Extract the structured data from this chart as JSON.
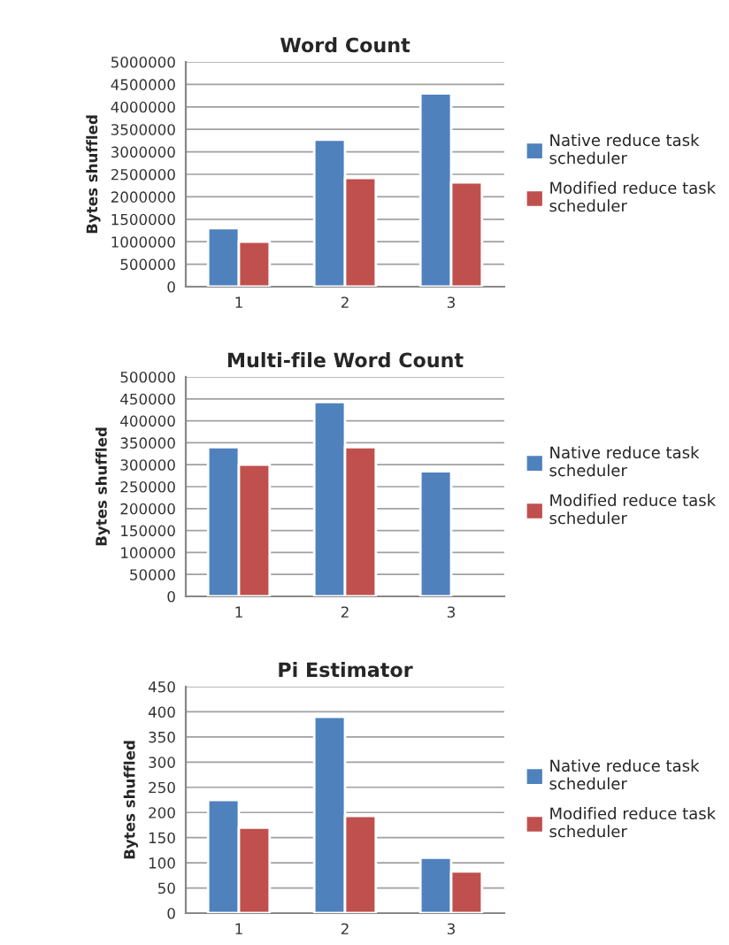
{
  "chart_data": [
    {
      "type": "bar",
      "title": "Word Count",
      "ylabel": "Bytes shuffled",
      "categories": [
        "1",
        "2",
        "3"
      ],
      "series": [
        {
          "name": "Native reduce task scheduler",
          "color": "#4f81bd",
          "values": [
            1300000,
            3270000,
            4300000
          ]
        },
        {
          "name": "Modified reduce task scheduler",
          "color": "#c0504d",
          "values": [
            1000000,
            2420000,
            2320000
          ]
        }
      ],
      "ylim": [
        0,
        5000000
      ],
      "yticks": [
        0,
        500000,
        1000000,
        1500000,
        2000000,
        2500000,
        3000000,
        3500000,
        4000000,
        4500000,
        5000000
      ],
      "grid": "y",
      "legend": "right"
    },
    {
      "type": "bar",
      "title": "Multi-file Word Count",
      "ylabel": "Bytes shuffled",
      "categories": [
        "1",
        "2",
        "3"
      ],
      "series": [
        {
          "name": "Native reduce task scheduler",
          "color": "#4f81bd",
          "values": [
            340000,
            443000,
            285000
          ]
        },
        {
          "name": "Modified reduce task scheduler",
          "color": "#c0504d",
          "values": [
            300000,
            340000,
            null
          ]
        }
      ],
      "ylim": [
        0,
        500000
      ],
      "yticks": [
        0,
        50000,
        100000,
        150000,
        200000,
        250000,
        300000,
        350000,
        400000,
        450000,
        500000
      ],
      "grid": "y",
      "legend": "right"
    },
    {
      "type": "bar",
      "title": "Pi Estimator",
      "ylabel": "Bytes shuffled",
      "categories": [
        "1",
        "2",
        "3"
      ],
      "series": [
        {
          "name": "Native reduce task scheduler",
          "color": "#4f81bd",
          "values": [
            225,
            390,
            110
          ]
        },
        {
          "name": "Modified reduce task scheduler",
          "color": "#c0504d",
          "values": [
            170,
            193,
            83
          ]
        }
      ],
      "ylim": [
        0,
        450
      ],
      "yticks": [
        0,
        50,
        100,
        150,
        200,
        250,
        300,
        350,
        400,
        450
      ],
      "grid": "y",
      "legend": "right"
    }
  ]
}
